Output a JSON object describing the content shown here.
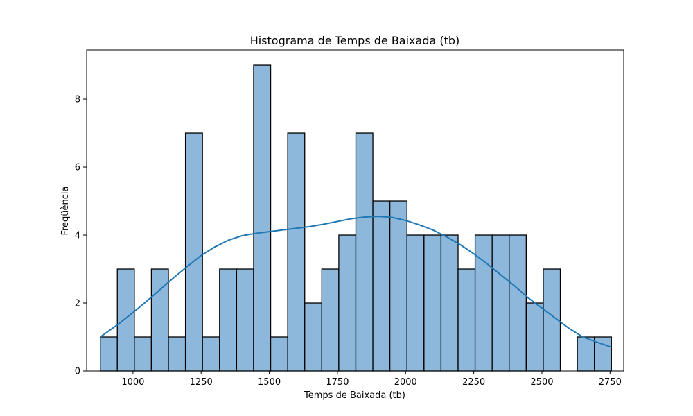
{
  "chart_data": {
    "type": "bar",
    "title": "Histograma de Temps de Baixada (tb)",
    "xlabel": "Temps de Baixada (tb)",
    "ylabel": "Freqüència",
    "xlim": [
      830,
      2800
    ],
    "ylim": [
      0,
      9.45
    ],
    "x_ticks": [
      1000,
      1250,
      1500,
      1750,
      2000,
      2250,
      2500,
      2750
    ],
    "y_ticks": [
      0,
      2,
      4,
      6,
      8
    ],
    "bin_start": 880,
    "bin_width": 62.5,
    "values": [
      1,
      3,
      1,
      3,
      1,
      7,
      1,
      3,
      3,
      9,
      1,
      7,
      2,
      3,
      4,
      7,
      5,
      5,
      4,
      4,
      4,
      3,
      4,
      4,
      4,
      2,
      3,
      0,
      1,
      1
    ],
    "kde": {
      "x": [
        880,
        950,
        1000,
        1050,
        1100,
        1150,
        1200,
        1250,
        1300,
        1350,
        1400,
        1450,
        1500,
        1550,
        1600,
        1650,
        1700,
        1750,
        1800,
        1850,
        1900,
        1950,
        2000,
        2050,
        2100,
        2150,
        2200,
        2250,
        2300,
        2350,
        2400,
        2450,
        2500,
        2550,
        2600,
        2650,
        2700,
        2755
      ],
      "y": [
        1.0,
        1.4,
        1.72,
        2.05,
        2.4,
        2.75,
        3.08,
        3.4,
        3.65,
        3.85,
        3.98,
        4.05,
        4.1,
        4.15,
        4.2,
        4.25,
        4.32,
        4.4,
        4.48,
        4.53,
        4.55,
        4.52,
        4.43,
        4.3,
        4.15,
        3.95,
        3.72,
        3.45,
        3.15,
        2.82,
        2.5,
        2.15,
        1.85,
        1.55,
        1.25,
        1.0,
        0.85,
        0.7
      ]
    },
    "grid": false,
    "colors": {
      "bar_fill": "#8db8db",
      "bar_edge": "#000000",
      "kde_line": "#1f77b4"
    }
  }
}
